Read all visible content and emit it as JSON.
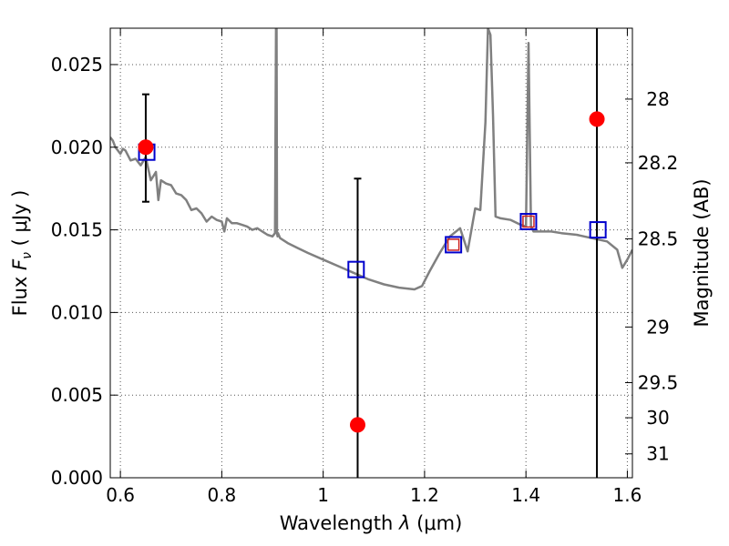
{
  "chart_data": {
    "type": "scatter",
    "xlabel_prefix": "Wavelength",
    "xlabel_symbol": "λ",
    "xlabel_unit": "(μm)",
    "ylabel_prefix": "Flux",
    "ylabel_symbol": "F",
    "ylabel_subscript": "ν",
    "ylabel_unit": "( μJy )",
    "y2label": "Magnitude (AB)",
    "xlim": [
      0.58,
      1.61
    ],
    "ylim": [
      0.0,
      0.0272
    ],
    "xticks": [
      {
        "value": 0.6,
        "label": "0.6"
      },
      {
        "value": 0.8,
        "label": "0.8"
      },
      {
        "value": 1.0,
        "label": "1"
      },
      {
        "value": 1.2,
        "label": "1.2"
      },
      {
        "value": 1.4,
        "label": "1.4"
      },
      {
        "value": 1.6,
        "label": "1.6"
      }
    ],
    "yticks": [
      {
        "value": 0.0,
        "label": "0.000"
      },
      {
        "value": 0.005,
        "label": "0.005"
      },
      {
        "value": 0.01,
        "label": "0.010"
      },
      {
        "value": 0.015,
        "label": "0.015"
      },
      {
        "value": 0.02,
        "label": "0.020"
      },
      {
        "value": 0.025,
        "label": "0.025"
      }
    ],
    "y2ticks": [
      {
        "mag": 28,
        "label": "28"
      },
      {
        "mag": 28.2,
        "label": "28.2"
      },
      {
        "mag": 28.5,
        "label": "28.5"
      },
      {
        "mag": 29,
        "label": "29"
      },
      {
        "mag": 29.5,
        "label": "29.5"
      },
      {
        "mag": 30,
        "label": "30"
      },
      {
        "mag": 31,
        "label": "31"
      }
    ],
    "grid": true,
    "colors": {
      "model_line": "#808080",
      "observed": "#ff0000",
      "model_box": "#0000cc",
      "model_box_inner": "#cc2222",
      "errorbar": "#000000",
      "grid": "#555555"
    },
    "model_spectrum": {
      "x": [
        0.58,
        0.585,
        0.59,
        0.6,
        0.605,
        0.61,
        0.62,
        0.63,
        0.64,
        0.65,
        0.66,
        0.67,
        0.675,
        0.68,
        0.69,
        0.7,
        0.71,
        0.72,
        0.73,
        0.74,
        0.75,
        0.76,
        0.77,
        0.78,
        0.79,
        0.8,
        0.805,
        0.81,
        0.82,
        0.83,
        0.84,
        0.85,
        0.86,
        0.87,
        0.88,
        0.89,
        0.9,
        0.905,
        0.907,
        0.908,
        0.909,
        0.91,
        0.911,
        0.915,
        0.93,
        0.95,
        0.97,
        1.0,
        1.03,
        1.06,
        1.09,
        1.12,
        1.15,
        1.18,
        1.195,
        1.21,
        1.23,
        1.25,
        1.27,
        1.285,
        1.3,
        1.31,
        1.32,
        1.325,
        1.33,
        1.335,
        1.34,
        1.35,
        1.37,
        1.39,
        1.4,
        1.405,
        1.41,
        1.415,
        1.42,
        1.43,
        1.45,
        1.47,
        1.5,
        1.53,
        1.56,
        1.58,
        1.59,
        1.6,
        1.61
      ],
      "y": [
        0.0206,
        0.0204,
        0.02,
        0.0196,
        0.0199,
        0.0198,
        0.0192,
        0.0193,
        0.0189,
        0.0194,
        0.018,
        0.0185,
        0.0168,
        0.018,
        0.0178,
        0.0177,
        0.0172,
        0.0171,
        0.0168,
        0.0162,
        0.0163,
        0.016,
        0.0155,
        0.0158,
        0.0156,
        0.0155,
        0.0149,
        0.0157,
        0.0154,
        0.0154,
        0.0153,
        0.0152,
        0.015,
        0.0151,
        0.0149,
        0.0147,
        0.0146,
        0.0148,
        0.0272,
        0.0272,
        0.0148,
        0.0146,
        0.0148,
        0.0145,
        0.0142,
        0.0139,
        0.0136,
        0.0132,
        0.0128,
        0.0124,
        0.012,
        0.0117,
        0.0115,
        0.0114,
        0.0116,
        0.0125,
        0.0136,
        0.0146,
        0.0151,
        0.0137,
        0.0163,
        0.0162,
        0.0215,
        0.0272,
        0.0268,
        0.022,
        0.0158,
        0.0157,
        0.0156,
        0.0153,
        0.0152,
        0.0263,
        0.0152,
        0.0149,
        0.0149,
        0.0149,
        0.0149,
        0.0148,
        0.0147,
        0.0145,
        0.0143,
        0.0138,
        0.0127,
        0.0132,
        0.0138
      ]
    },
    "observed": [
      {
        "x": 0.65,
        "y": 0.02,
        "yerr_low": 0.0167,
        "yerr_high": 0.0232
      },
      {
        "x": 1.068,
        "y": 0.0032,
        "yerr_low": 0.0,
        "yerr_high": 0.0181
      },
      {
        "x": 1.54,
        "y": 0.0217,
        "yerr_low": 0.0,
        "yerr_high": 0.0272
      }
    ],
    "model_photometry": [
      {
        "x": 0.652,
        "y": 0.0197,
        "inner": false
      },
      {
        "x": 1.065,
        "y": 0.0126,
        "inner": false
      },
      {
        "x": 1.257,
        "y": 0.0141,
        "inner": true
      },
      {
        "x": 1.405,
        "y": 0.0155,
        "inner": true
      },
      {
        "x": 1.542,
        "y": 0.015,
        "inner": false
      }
    ]
  }
}
